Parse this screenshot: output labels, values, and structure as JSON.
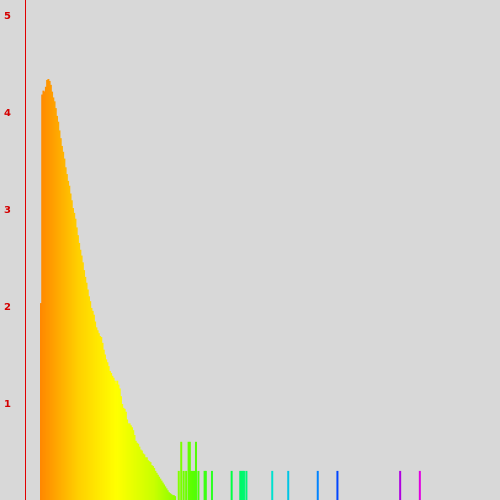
{
  "chart_data": {
    "type": "bar",
    "title": "",
    "xlabel": "",
    "ylabel": "",
    "ylim": [
      0,
      5
    ],
    "yticks": [
      1,
      2,
      3,
      4,
      5
    ],
    "ytick_labels": [
      "1",
      "2",
      "3",
      "4",
      "5"
    ],
    "grid": false,
    "legend": "none",
    "x": [
      1,
      2,
      3,
      4,
      5,
      6,
      7,
      8,
      9,
      10,
      11,
      12,
      13,
      14,
      15,
      16,
      17,
      18,
      19,
      20,
      21,
      22,
      23,
      24,
      25,
      26,
      27,
      28,
      29,
      30,
      31,
      32,
      33,
      34,
      35,
      36,
      37,
      38,
      39,
      40,
      41,
      42,
      43,
      44,
      45,
      46,
      47,
      48,
      49,
      50,
      51,
      52,
      53,
      54,
      55,
      56,
      57,
      58,
      59,
      60,
      61,
      62,
      63,
      64,
      65,
      66,
      67,
      68,
      69,
      70,
      71,
      72,
      73,
      74,
      75,
      76,
      77,
      78,
      79,
      80,
      81,
      82,
      83,
      84,
      85,
      86,
      87,
      88,
      89,
      90,
      91,
      92,
      93,
      94,
      95,
      96,
      97,
      98,
      99,
      100,
      101,
      102,
      103,
      104,
      105,
      106,
      107,
      108,
      109,
      110,
      113,
      115,
      117,
      119,
      121,
      122,
      123,
      124,
      125,
      126,
      127,
      129,
      134,
      135,
      140,
      156,
      163,
      164,
      165,
      166,
      168,
      189,
      202,
      226,
      242,
      293,
      309
    ],
    "values": [
      2.03,
      4.18,
      4.22,
      4.21,
      4.26,
      4.33,
      4.34,
      4.32,
      4.28,
      4.21,
      4.15,
      4.11,
      4.04,
      3.96,
      3.9,
      3.81,
      3.73,
      3.65,
      3.59,
      3.52,
      3.43,
      3.36,
      3.29,
      3.24,
      3.16,
      3.09,
      3.01,
      2.96,
      2.9,
      2.81,
      2.73,
      2.65,
      2.58,
      2.52,
      2.45,
      2.37,
      2.3,
      2.24,
      2.17,
      2.1,
      2.05,
      1.98,
      1.95,
      1.91,
      1.84,
      1.78,
      1.75,
      1.72,
      1.69,
      1.68,
      1.62,
      1.55,
      1.5,
      1.45,
      1.42,
      1.38,
      1.33,
      1.31,
      1.28,
      1.26,
      1.23,
      1.2,
      1.23,
      1.19,
      1.15,
      1.07,
      0.99,
      0.95,
      0.94,
      0.91,
      0.83,
      0.79,
      0.79,
      0.77,
      0.75,
      0.72,
      0.67,
      0.61,
      0.59,
      0.58,
      0.55,
      0.52,
      0.51,
      0.48,
      0.47,
      0.44,
      0.44,
      0.41,
      0.4,
      0.39,
      0.36,
      0.35,
      0.33,
      0.3,
      0.28,
      0.26,
      0.24,
      0.22,
      0.2,
      0.18,
      0.16,
      0.14,
      0.12,
      0.1,
      0.08,
      0.07,
      0.06,
      0.05,
      0.05,
      0.04,
      0.3,
      0.6,
      0.3,
      0.3,
      0.6,
      0.6,
      0.3,
      0.3,
      0.3,
      0.3,
      0.6,
      0.3,
      0.3,
      0.3,
      0.3,
      0.3,
      0.3,
      0.3,
      0.3,
      0.3,
      0.3,
      0.3,
      0.3,
      0.3,
      0.3,
      0.3,
      0.3
    ],
    "colors": {
      "axis": "#e00000",
      "tick_label": "#d40000",
      "background": "#d8d8d8",
      "gradient": [
        "#ff8800",
        "#ffd000",
        "#ffff00",
        "#c8ff00",
        "#5aff00",
        "#00ff40",
        "#00e8c8",
        "#00a8ff",
        "#0030ff",
        "#8000e0",
        "#e000e0"
      ]
    }
  }
}
